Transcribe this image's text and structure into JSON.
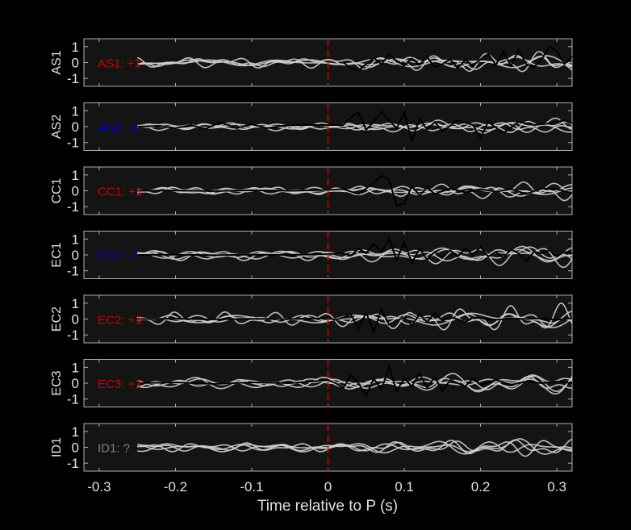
{
  "chart_data": {
    "type": "line",
    "xlabel": "Time relative to P (s)",
    "xlim": [
      -0.32,
      0.32
    ],
    "xticks": [
      -0.3,
      -0.2,
      -0.1,
      0,
      0.1,
      0.2,
      0.3
    ],
    "xtick_labels": [
      "-0.3",
      "-0.2",
      "-0.1",
      "0",
      "0.1",
      "0.2",
      "0.3"
    ],
    "ylim": [
      -1.5,
      1.5
    ],
    "yticks": [
      1,
      0,
      -1
    ],
    "ytick_labels": [
      "1",
      "0",
      "-1"
    ],
    "marker_time": 0,
    "colors": {
      "background": "#000000",
      "panel_face": "#141414",
      "marker": "#cc0000",
      "stack_traces": "#d0d0d0",
      "reference_trace": "#000000",
      "up": "#cc0000",
      "down": "#0000cc",
      "unknown": "#808080"
    },
    "panels": [
      {
        "station": "AS1",
        "label": "AS1: +1",
        "label_color": "#cc0000",
        "reference_trace": {
          "start": 0.02,
          "x": [
            0.02,
            0.03,
            0.04,
            0.06,
            0.07,
            0.08,
            0.09,
            0.1,
            0.11,
            0.12,
            0.13,
            0.14,
            0.15,
            0.16,
            0.17,
            0.18,
            0.19,
            0.2,
            0.21,
            0.22,
            0.23,
            0.24,
            0.25,
            0.26,
            0.27,
            0.28,
            0.29,
            0.3,
            0.31,
            0.32
          ],
          "y": [
            0,
            -0.35,
            -0.5,
            0.3,
            -0.1,
            0.5,
            0.1,
            -0.2,
            0.25,
            -0.15,
            0.35,
            -0.3,
            -0.1,
            0.2,
            -0.35,
            0.15,
            -0.2,
            0.2,
            0.55,
            -0.15,
            0.7,
            -0.2,
            0.8,
            -0.1,
            -0.3,
            0.2,
            1.0,
            0.7,
            -0.1,
            0.4
          ]
        },
        "stack_amplitude": 0.25
      },
      {
        "station": "AS2",
        "label": "AS2: -1",
        "label_color": "#0000cc",
        "reference_trace": {
          "start": -0.25,
          "x": [
            -0.25,
            -0.22,
            -0.2,
            -0.18,
            -0.16,
            -0.15,
            -0.14,
            -0.12,
            -0.1,
            -0.08,
            -0.06,
            -0.04,
            0.02,
            0.03,
            0.04,
            0.05,
            0.06,
            0.07,
            0.08,
            0.09,
            0.1,
            0.11,
            0.12,
            0.13,
            0.14,
            0.15,
            0.17,
            0.19,
            0.2,
            0.21,
            0.23,
            0.25,
            0.27,
            0.29,
            0.31,
            0.32
          ],
          "y": [
            0,
            0.05,
            -0.1,
            0.1,
            -0.15,
            0.1,
            0.25,
            -0.1,
            0.15,
            -0.1,
            0.05,
            0.1,
            0.1,
            0.6,
            0.9,
            -0.2,
            0.3,
            0.95,
            0.4,
            -0.1,
            0.9,
            -0.9,
            0.5,
            -0.2,
            0.3,
            -0.3,
            0.4,
            0.1,
            -0.7,
            0.3,
            -0.4,
            0.3,
            0.1,
            0.2,
            0.4,
            0.2
          ]
        },
        "stack_amplitude": 0.22
      },
      {
        "station": "CC1",
        "label": "CC1: +1",
        "label_color": "#cc0000",
        "reference_trace": {
          "start": -0.25,
          "x": [
            -0.25,
            -0.2,
            -0.15,
            -0.1,
            -0.05,
            0,
            0.02,
            0.04,
            0.06,
            0.07,
            0.08,
            0.09,
            0.1,
            0.11,
            0.12,
            0.13,
            0.14,
            0.16,
            0.18,
            0.2,
            0.22,
            0.24,
            0.26,
            0.28,
            0.3,
            0.32
          ],
          "y": [
            0,
            0.02,
            -0.02,
            0.03,
            0,
            0.05,
            0.1,
            -0.2,
            0.5,
            0.95,
            0.7,
            -0.95,
            -0.8,
            0.3,
            -0.3,
            0.2,
            -0.2,
            0.15,
            -0.1,
            0.1,
            -0.05,
            0.1,
            -0.2,
            0.15,
            0.1,
            -0.15
          ]
        },
        "stack_amplitude": 0.2
      },
      {
        "station": "EC1",
        "label": "EC1: -1",
        "label_color": "#0000cc",
        "reference_trace": {
          "start": -0.25,
          "x": [
            -0.25,
            -0.2,
            -0.15,
            -0.1,
            -0.05,
            0,
            0.02,
            0.03,
            0.04,
            0.05,
            0.06,
            0.07,
            0.08,
            0.09,
            0.1,
            0.11,
            0.12,
            0.13,
            0.14,
            0.15,
            0.16,
            0.17,
            0.18,
            0.19,
            0.2,
            0.21,
            0.22,
            0.23,
            0.24,
            0.25,
            0.26,
            0.27,
            0.28,
            0.29,
            0.3,
            0.31,
            0.32
          ],
          "y": [
            0,
            0.02,
            -0.02,
            0.02,
            0,
            0.05,
            0.1,
            -0.05,
            0.4,
            0.1,
            0.7,
            0.2,
            1.0,
            -0.3,
            0.8,
            -0.5,
            0.4,
            -0.3,
            0.2,
            -0.2,
            0.3,
            -0.1,
            0.4,
            0.0,
            0.5,
            -0.1,
            0.2,
            -0.2,
            0.35,
            0.1,
            -0.4,
            0.2,
            0.1,
            0.3,
            -0.1,
            0.2,
            0.1
          ]
        },
        "stack_amplitude": 0.25
      },
      {
        "station": "EC2",
        "label": "EC2: +1",
        "label_color": "#cc0000",
        "reference_trace": {
          "start": -0.25,
          "x": [
            -0.25,
            -0.2,
            -0.15,
            -0.1,
            -0.05,
            0,
            0.01,
            0.02,
            0.03,
            0.04,
            0.05,
            0.06,
            0.07,
            0.08,
            0.09,
            0.1,
            0.11,
            0.12,
            0.13,
            0.14,
            0.15,
            0.16,
            0.17,
            0.18,
            0.19,
            0.2,
            0.22,
            0.24,
            0.26,
            0.28,
            0.3,
            0.32
          ],
          "y": [
            0,
            0.02,
            -0.02,
            0.02,
            0,
            0.05,
            -0.05,
            0.1,
            0.3,
            -0.6,
            0.4,
            -0.8,
            0.6,
            -0.35,
            -0.1,
            0.1,
            -0.4,
            0.3,
            -0.2,
            0.4,
            -0.1,
            0.1,
            0.0,
            -0.2,
            0.1,
            0.05,
            -0.05,
            0.05,
            0.0,
            0.05,
            -0.05,
            0.05
          ]
        },
        "stack_amplitude": 0.3
      },
      {
        "station": "EC3",
        "label": "EC3: +1",
        "label_color": "#cc0000",
        "reference_trace": {
          "start": -0.25,
          "x": [
            -0.25,
            -0.2,
            -0.15,
            -0.1,
            -0.05,
            0,
            0.01,
            0.02,
            0.03,
            0.04,
            0.05,
            0.06,
            0.07,
            0.08,
            0.09,
            0.1,
            0.11,
            0.12,
            0.13,
            0.14,
            0.15,
            0.16,
            0.17,
            0.18,
            0.19,
            0.2,
            0.22,
            0.24,
            0.26,
            0.28,
            0.3,
            0.32
          ],
          "y": [
            0,
            0.05,
            -0.05,
            0.05,
            0,
            0.2,
            0.0,
            -0.3,
            0.5,
            0.0,
            -0.8,
            0.3,
            -0.4,
            1.0,
            -0.5,
            0.3,
            -0.2,
            0.6,
            -0.3,
            0.4,
            -0.5,
            0.2,
            0.0,
            -0.2,
            0.3,
            -0.1,
            0.2,
            -0.1,
            0.1,
            0.0,
            0.1,
            0.0
          ]
        },
        "stack_amplitude": 0.25
      },
      {
        "station": "ID1",
        "label": "ID1: ?",
        "label_color": "#808080",
        "reference_trace": null,
        "stack_amplitude": 0.2
      }
    ]
  }
}
